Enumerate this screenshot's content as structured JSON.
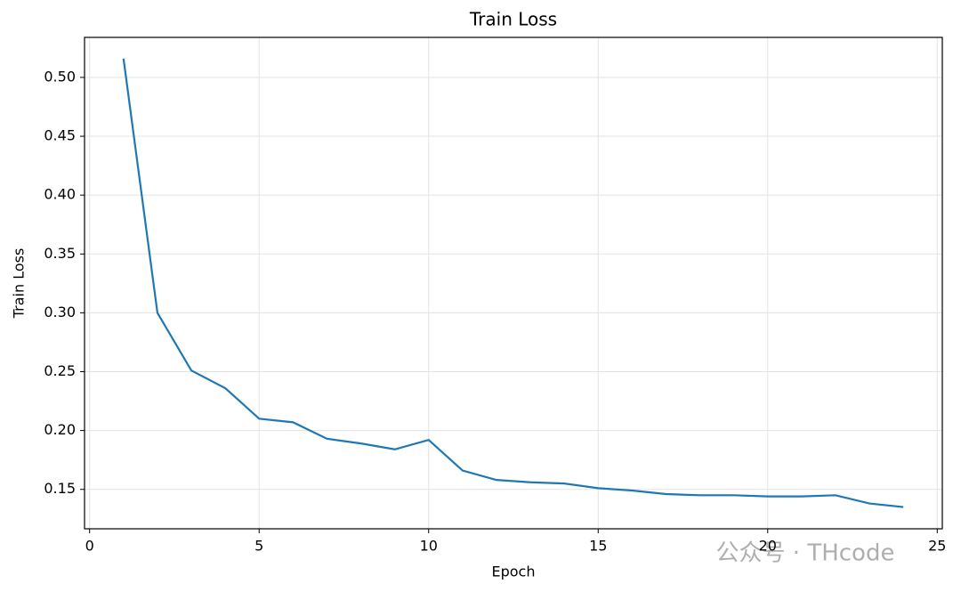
{
  "chart_data": {
    "type": "line",
    "title": "Train Loss",
    "x_label": "Epoch",
    "y_label": "Train Loss",
    "x": [
      1,
      2,
      3,
      4,
      5,
      6,
      7,
      8,
      9,
      10,
      11,
      12,
      13,
      14,
      15,
      16,
      17,
      18,
      19,
      20,
      21,
      22,
      23,
      24
    ],
    "series": [
      {
        "name": "Train Loss",
        "color": "#1f77b4",
        "values": [
          0.516,
          0.3,
          0.251,
          0.236,
          0.21,
          0.207,
          0.193,
          0.189,
          0.184,
          0.192,
          0.166,
          0.158,
          0.156,
          0.155,
          0.151,
          0.149,
          0.146,
          0.145,
          0.145,
          0.144,
          0.144,
          0.145,
          0.138,
          0.135
        ]
      }
    ],
    "xlim": [
      -0.15,
      25.15
    ],
    "ylim": [
      0.1165,
      0.534
    ],
    "xticks": [
      0,
      5,
      10,
      15,
      20,
      25
    ],
    "yticks": [
      {
        "value": 0.15,
        "label": "0.15"
      },
      {
        "value": 0.2,
        "label": "0.20"
      },
      {
        "value": 0.25,
        "label": "0.25"
      },
      {
        "value": 0.3,
        "label": "0.30"
      },
      {
        "value": 0.35,
        "label": "0.35"
      },
      {
        "value": 0.4,
        "label": "0.40"
      },
      {
        "value": 0.45,
        "label": "0.45"
      },
      {
        "value": 0.5,
        "label": "0.50"
      }
    ],
    "grid": true,
    "watermark": "公众号 · THcode"
  }
}
